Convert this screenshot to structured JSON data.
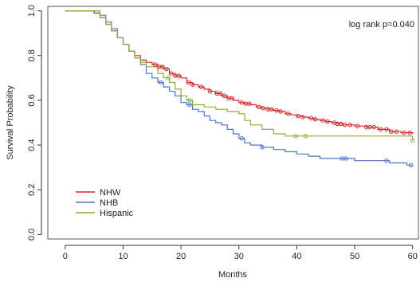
{
  "chart_data": {
    "type": "line",
    "subtype": "kaplan-meier step",
    "xlabel": "Months",
    "ylabel": "Survival Probability",
    "xlim": [
      -3,
      61
    ],
    "ylim": [
      -0.02,
      1.02
    ],
    "x_ticks": [
      0,
      10,
      20,
      30,
      40,
      50,
      60
    ],
    "y_ticks": [
      0.0,
      0.2,
      0.4,
      0.6,
      0.8,
      1.0
    ],
    "x_tick_labels": [
      "0",
      "10",
      "20",
      "30",
      "40",
      "50",
      "60"
    ],
    "y_tick_labels": [
      "0.0",
      "0.2",
      "0.4",
      "0.6",
      "0.8",
      "1.0"
    ],
    "grid": false,
    "legend_position": "bottom-left",
    "annotation": "log rank p=0.040",
    "series": [
      {
        "name": "NHW",
        "color": "#d62728",
        "steps": [
          [
            0,
            1.0
          ],
          [
            4,
            1.0
          ],
          [
            5,
            0.99
          ],
          [
            6,
            0.97
          ],
          [
            7,
            0.94
          ],
          [
            8,
            0.91
          ],
          [
            9,
            0.88
          ],
          [
            10,
            0.85
          ],
          [
            11,
            0.82
          ],
          [
            12,
            0.8
          ],
          [
            13,
            0.78
          ],
          [
            14,
            0.77
          ],
          [
            15,
            0.76
          ],
          [
            16,
            0.75
          ],
          [
            17,
            0.74
          ],
          [
            18,
            0.72
          ],
          [
            19,
            0.71
          ],
          [
            20,
            0.7
          ],
          [
            21,
            0.68
          ],
          [
            22,
            0.67
          ],
          [
            23,
            0.66
          ],
          [
            24,
            0.65
          ],
          [
            25,
            0.64
          ],
          [
            26,
            0.63
          ],
          [
            27,
            0.62
          ],
          [
            28,
            0.61
          ],
          [
            29,
            0.6
          ],
          [
            30,
            0.59
          ],
          [
            31,
            0.585
          ],
          [
            32,
            0.58
          ],
          [
            33,
            0.57
          ],
          [
            34,
            0.565
          ],
          [
            35,
            0.56
          ],
          [
            36,
            0.555
          ],
          [
            37,
            0.55
          ],
          [
            38,
            0.54
          ],
          [
            39,
            0.535
          ],
          [
            40,
            0.53
          ],
          [
            41,
            0.525
          ],
          [
            42,
            0.52
          ],
          [
            43,
            0.515
          ],
          [
            44,
            0.51
          ],
          [
            45,
            0.505
          ],
          [
            46,
            0.5
          ],
          [
            47,
            0.495
          ],
          [
            48,
            0.49
          ],
          [
            50,
            0.485
          ],
          [
            52,
            0.48
          ],
          [
            54,
            0.47
          ],
          [
            56,
            0.46
          ],
          [
            58,
            0.455
          ],
          [
            60,
            0.45
          ]
        ],
        "censor_x": [
          15.5,
          16.2,
          16.8,
          17.5,
          18.3,
          19.0,
          19.6,
          21.3,
          22.0,
          23.5,
          25.0,
          26.2,
          26.8,
          27.5,
          28.2,
          28.8,
          30.5,
          31.2,
          31.8,
          33.5,
          34.2,
          35.0,
          35.6,
          36.5,
          37.2,
          38.5,
          40.2,
          41.0,
          42.5,
          43.2,
          44.5,
          45.3,
          46.5,
          47.0,
          47.6,
          48.3,
          49.2,
          50.5,
          52.0,
          52.6,
          53.3,
          54.5,
          55.5,
          56.3,
          57.2,
          58.5,
          59.5
        ]
      },
      {
        "name": "NHB",
        "color": "#4a76c9",
        "steps": [
          [
            0,
            1.0
          ],
          [
            5,
            1.0
          ],
          [
            6,
            0.98
          ],
          [
            7,
            0.95
          ],
          [
            8,
            0.92
          ],
          [
            9,
            0.88
          ],
          [
            10,
            0.85
          ],
          [
            11,
            0.82
          ],
          [
            12,
            0.79
          ],
          [
            13,
            0.76
          ],
          [
            14,
            0.72
          ],
          [
            15,
            0.7
          ],
          [
            16,
            0.68
          ],
          [
            17,
            0.66
          ],
          [
            18,
            0.64
          ],
          [
            19,
            0.62
          ],
          [
            20,
            0.59
          ],
          [
            21,
            0.58
          ],
          [
            22,
            0.56
          ],
          [
            23,
            0.55
          ],
          [
            24,
            0.53
          ],
          [
            25,
            0.51
          ],
          [
            26,
            0.5
          ],
          [
            27,
            0.49
          ],
          [
            28,
            0.47
          ],
          [
            29,
            0.45
          ],
          [
            30,
            0.43
          ],
          [
            31,
            0.41
          ],
          [
            32,
            0.4
          ],
          [
            34,
            0.39
          ],
          [
            36,
            0.38
          ],
          [
            38,
            0.37
          ],
          [
            40,
            0.36
          ],
          [
            42,
            0.35
          ],
          [
            44,
            0.34
          ],
          [
            48,
            0.34
          ],
          [
            50,
            0.33
          ],
          [
            52,
            0.33
          ],
          [
            54,
            0.33
          ],
          [
            56,
            0.32
          ],
          [
            58,
            0.32
          ],
          [
            59,
            0.31
          ],
          [
            60,
            0.31
          ]
        ],
        "censor_x": [
          16.5,
          21.5,
          30.5,
          34.0,
          47.8,
          48.5,
          55.5,
          59.7
        ]
      },
      {
        "name": "Hispanic",
        "color": "#8faa3a",
        "steps": [
          [
            0,
            1.0
          ],
          [
            5,
            1.0
          ],
          [
            6,
            0.97
          ],
          [
            7,
            0.94
          ],
          [
            8,
            0.91
          ],
          [
            9,
            0.88
          ],
          [
            10,
            0.85
          ],
          [
            11,
            0.82
          ],
          [
            12,
            0.79
          ],
          [
            13,
            0.77
          ],
          [
            14,
            0.75
          ],
          [
            16,
            0.72
          ],
          [
            17,
            0.7
          ],
          [
            18,
            0.68
          ],
          [
            19,
            0.65
          ],
          [
            20,
            0.62
          ],
          [
            21,
            0.6
          ],
          [
            22,
            0.58
          ],
          [
            24,
            0.57
          ],
          [
            26,
            0.56
          ],
          [
            28,
            0.55
          ],
          [
            30,
            0.54
          ],
          [
            31,
            0.51
          ],
          [
            32,
            0.49
          ],
          [
            34,
            0.47
          ],
          [
            36,
            0.45
          ],
          [
            38,
            0.44
          ],
          [
            60,
            0.44
          ],
          [
            60,
            0.42
          ]
        ],
        "censor_x": [
          17.8,
          21.5,
          39.8,
          41.5,
          60.0
        ]
      }
    ]
  }
}
